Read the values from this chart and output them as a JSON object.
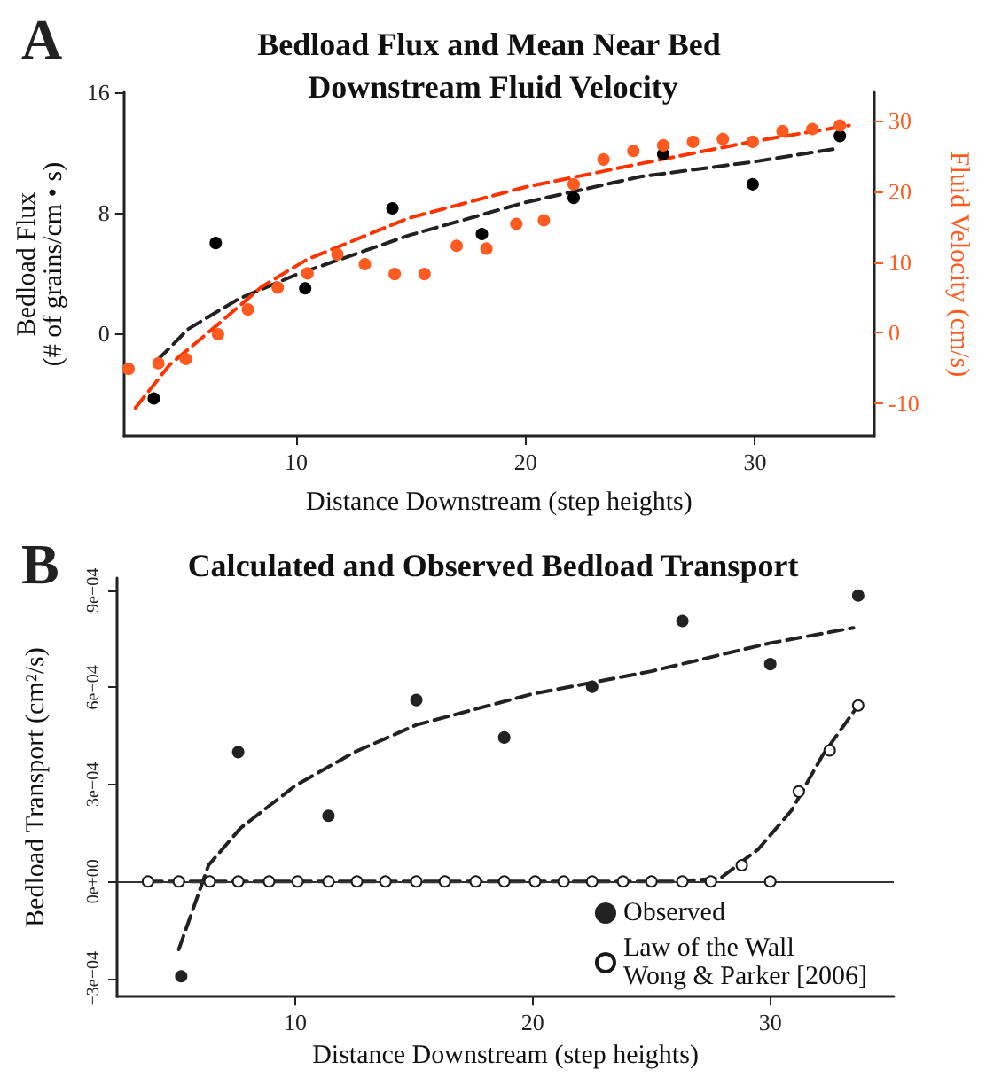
{
  "chart_data": [
    {
      "type": "scatter",
      "title": "Bedload Flux and Mean Near Bed Downstream Fluid Velocity",
      "xlabel": "Distance Downstream (step heights)",
      "ylabel": "Bedload Flux\n(# of grains/cm • s)",
      "y2label": "Fluid Velocity (cm/s)",
      "annotations": [
        "A"
      ],
      "xlim": [
        2.5,
        35.2
      ],
      "xticks": [
        10,
        20,
        30
      ],
      "ylim": [
        -6.8,
        16
      ],
      "yticks": [
        0,
        8,
        16
      ],
      "y2lim": [
        -14.6,
        34
      ],
      "y2ticks": [
        -10,
        0,
        10,
        20,
        30
      ],
      "grid": false,
      "series": [
        {
          "marker": "circle",
          "color": "#000000",
          "x": [
            3.8,
            6.5,
            10.4,
            14.2,
            18.1,
            22.1,
            26.0,
            29.9,
            33.7
          ],
          "values": [
            -4.3,
            6.0,
            3.0,
            8.3,
            6.6,
            9.0,
            11.9,
            9.9,
            13.1
          ]
        },
        {
          "marker": "circle",
          "axis": "y2",
          "color": "#ff5a1f",
          "x": [
            2.7,
            4.0,
            5.2,
            6.6,
            7.9,
            9.2,
            10.5,
            11.8,
            13.0,
            14.3,
            15.6,
            17.0,
            18.3,
            19.6,
            20.8,
            22.1,
            23.4,
            24.7,
            26.0,
            27.3,
            28.6,
            29.9,
            31.2,
            32.5,
            33.7
          ],
          "values": [
            -5.1,
            -4.3,
            -3.7,
            -0.2,
            3.3,
            6.4,
            8.4,
            11.1,
            9.7,
            8.3,
            8.3,
            12.3,
            11.9,
            15.4,
            15.9,
            21.0,
            24.5,
            25.7,
            26.5,
            27.0,
            27.4,
            27.0,
            28.5,
            28.8,
            29.3
          ]
        },
        {
          "type": "line",
          "marker": "none",
          "line_style": "dashed",
          "color": "#222222",
          "x": [
            4.0,
            5.3,
            7.5,
            10,
            14.9,
            20,
            25,
            30,
            33.7
          ],
          "values": [
            -1.7,
            0.3,
            2.3,
            3.9,
            6.5,
            8.7,
            10.4,
            11.4,
            12.3
          ]
        },
        {
          "type": "line",
          "marker": "none",
          "line_style": "dashed",
          "axis": "y2",
          "color": "#ff3300",
          "x": [
            3.0,
            4.5,
            6.6,
            8.5,
            10.5,
            14.9,
            20,
            25,
            30,
            34.1
          ],
          "values": [
            -10.6,
            -4.5,
            1.2,
            6.5,
            10.4,
            16.2,
            20.6,
            23.9,
            27.1,
            29.3
          ]
        }
      ]
    },
    {
      "type": "scatter",
      "title": "Calculated and Observed Bedload Transport",
      "xlabel": "Distance Downstream (step heights)",
      "ylabel": "Bedload Transport (cm²/s)",
      "annotations": [
        "B"
      ],
      "xlim": [
        2.5,
        35.2
      ],
      "xticks": [
        10,
        20,
        30
      ],
      "ylim": [
        -0.000356,
        0.000938
      ],
      "yticks": [
        {
          "value": -0.0003,
          "label": "−3e−04"
        },
        {
          "value": 0,
          "label": "0e+00"
        },
        {
          "value": 0.0003,
          "label": "3e−04"
        },
        {
          "value": 0.0006,
          "label": "6e−04"
        },
        {
          "value": 0.0009,
          "label": "9e−04"
        }
      ],
      "grid": false,
      "legend": "bottom right",
      "ref_lines": [
        {
          "axis": "y",
          "value": 0,
          "color": "#333333"
        }
      ],
      "series": [
        {
          "type": "line",
          "marker": "none",
          "line_style": "dashed",
          "color": "#222222",
          "x": [
            5.1,
            6.35,
            7.7,
            10,
            12.5,
            15.1,
            20,
            25,
            30,
            33.5
          ],
          "values": [
            -0.00021,
            5e-05,
            0.000165,
            0.000296,
            0.0004,
            0.000484,
            0.00058,
            0.00065,
            0.000737,
            0.000784
          ]
        },
        {
          "type": "line",
          "marker": "none",
          "line_style": "dashed",
          "color": "#222222",
          "x": [
            3.8,
            10,
            20,
            26,
            27.9,
            29.5,
            30.9,
            32.2,
            33.7
          ],
          "values": [
            0,
            0,
            0,
            0,
            1e-05,
            0.0001,
            0.00022,
            0.00039,
            0.000544
          ]
        },
        {
          "name": "Observed",
          "marker": "circle",
          "color": "#222222",
          "x": [
            5.2,
            7.6,
            11.4,
            15.1,
            18.8,
            22.5,
            26.3,
            30.0,
            33.7
          ],
          "values": [
            -0.000293,
            0.0004,
            0.000203,
            0.000561,
            0.000445,
            0.000602,
            0.000805,
            0.000672,
            0.000884
          ]
        },
        {
          "name": "Law of the Wall\nWong & Parker [2006]",
          "marker": "circle",
          "color": "#ffffff",
          "x": [
            3.8,
            5.1,
            6.4,
            7.6,
            8.9,
            10.1,
            11.4,
            12.6,
            13.8,
            15.1,
            16.3,
            17.6,
            18.8,
            20.1,
            21.3,
            22.5,
            23.8,
            25.0,
            26.3,
            27.5,
            28.8,
            30.0,
            31.2,
            32.5,
            33.7
          ],
          "values": [
            0,
            0,
            0,
            0,
            0,
            0,
            0,
            0,
            0,
            0,
            0,
            0,
            0,
            0,
            0,
            0,
            0,
            0,
            0,
            0,
            5e-05,
            0,
            0.000278,
            0.000405,
            0.000544
          ]
        }
      ]
    }
  ]
}
